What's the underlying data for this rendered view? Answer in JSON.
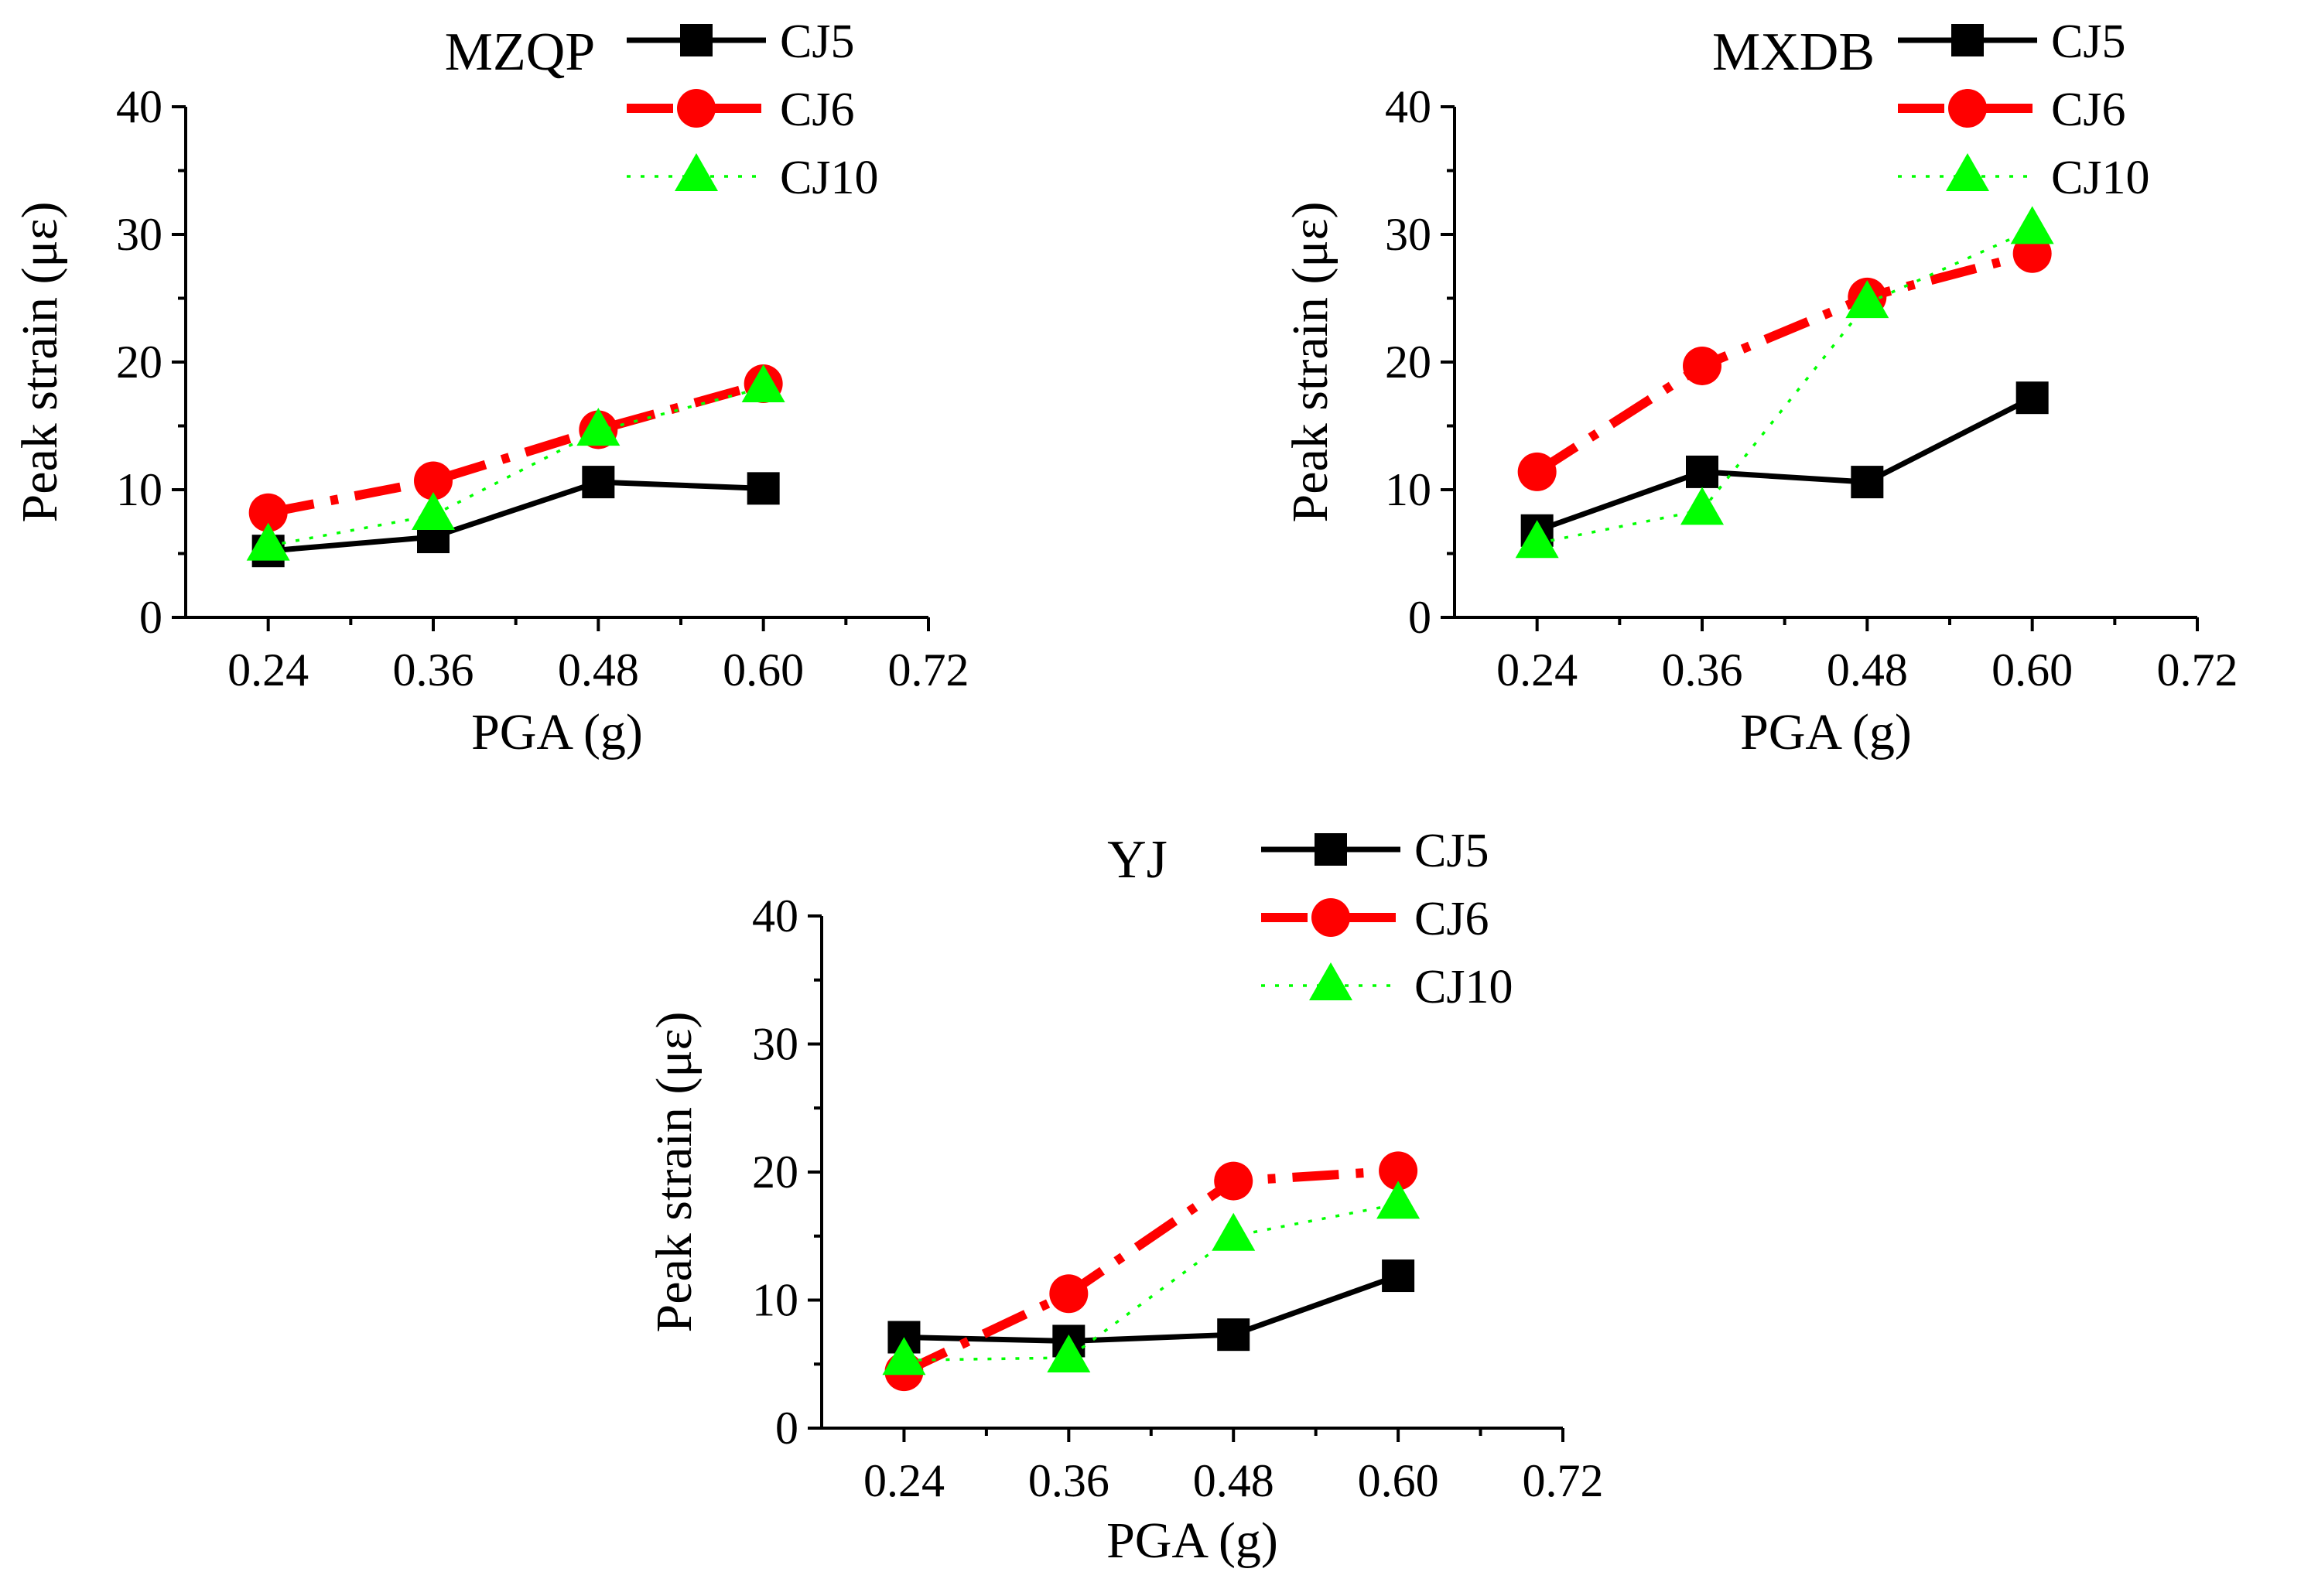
{
  "chart_data": [
    {
      "type": "line",
      "title": "MZQP",
      "xlabel": "PGA (g)",
      "ylabel": "Peak strain (με)",
      "x": [
        0.24,
        0.36,
        0.48,
        0.6
      ],
      "x_ticks": [
        "0.24",
        "0.36",
        "0.48",
        "0.60",
        "0.72"
      ],
      "y_ticks": [
        "0",
        "10",
        "20",
        "30",
        "40"
      ],
      "xlim": [
        0.18,
        0.72
      ],
      "ylim": [
        0,
        40
      ],
      "legend_position": "top-right",
      "series": [
        {
          "name": "CJ5",
          "values": [
            5.2,
            6.3,
            10.6,
            10.1
          ],
          "color": "#000000",
          "marker": "square",
          "line_style": "solid"
        },
        {
          "name": "CJ6",
          "values": [
            8.2,
            10.7,
            14.7,
            18.3
          ],
          "color": "#ff0000",
          "marker": "circle",
          "line_style": "dashdot"
        },
        {
          "name": "CJ10",
          "values": [
            5.6,
            8.0,
            14.6,
            18.0
          ],
          "color": "#00ff00",
          "marker": "triangle",
          "line_style": "dotted"
        }
      ]
    },
    {
      "type": "line",
      "title": "MXDB",
      "xlabel": "PGA (g)",
      "ylabel": "Peak strain (με)",
      "x": [
        0.24,
        0.36,
        0.48,
        0.6
      ],
      "x_ticks": [
        "0.24",
        "0.36",
        "0.48",
        "0.60",
        "0.72"
      ],
      "y_ticks": [
        "0",
        "10",
        "20",
        "30",
        "40"
      ],
      "xlim": [
        0.18,
        0.72
      ],
      "ylim": [
        0,
        40
      ],
      "legend_position": "top-right",
      "series": [
        {
          "name": "CJ5",
          "values": [
            6.8,
            11.4,
            10.6,
            17.2
          ],
          "color": "#000000",
          "marker": "square",
          "line_style": "solid"
        },
        {
          "name": "CJ6",
          "values": [
            11.4,
            19.7,
            25.1,
            28.5
          ],
          "color": "#ff0000",
          "marker": "circle",
          "line_style": "dashdot"
        },
        {
          "name": "CJ10",
          "values": [
            5.8,
            8.4,
            24.6,
            30.4
          ],
          "color": "#00ff00",
          "marker": "triangle",
          "line_style": "dotted"
        }
      ]
    },
    {
      "type": "line",
      "title": "YJ",
      "xlabel": "PGA (g)",
      "ylabel": "Peak strain (με)",
      "x": [
        0.24,
        0.36,
        0.48,
        0.6
      ],
      "x_ticks": [
        "0.24",
        "0.36",
        "0.48",
        "0.60",
        "0.72"
      ],
      "y_ticks": [
        "0",
        "10",
        "20",
        "30",
        "40"
      ],
      "xlim": [
        0.18,
        0.72
      ],
      "ylim": [
        0,
        40
      ],
      "legend_position": "top-right",
      "series": [
        {
          "name": "CJ5",
          "values": [
            7.1,
            6.8,
            7.3,
            11.9
          ],
          "color": "#000000",
          "marker": "square",
          "line_style": "solid"
        },
        {
          "name": "CJ6",
          "values": [
            4.4,
            10.5,
            19.3,
            20.1
          ],
          "color": "#ff0000",
          "marker": "circle",
          "line_style": "dashdot"
        },
        {
          "name": "CJ10",
          "values": [
            5.3,
            5.5,
            15.0,
            17.5
          ],
          "color": "#00ff00",
          "marker": "triangle",
          "line_style": "dotted"
        }
      ]
    }
  ]
}
